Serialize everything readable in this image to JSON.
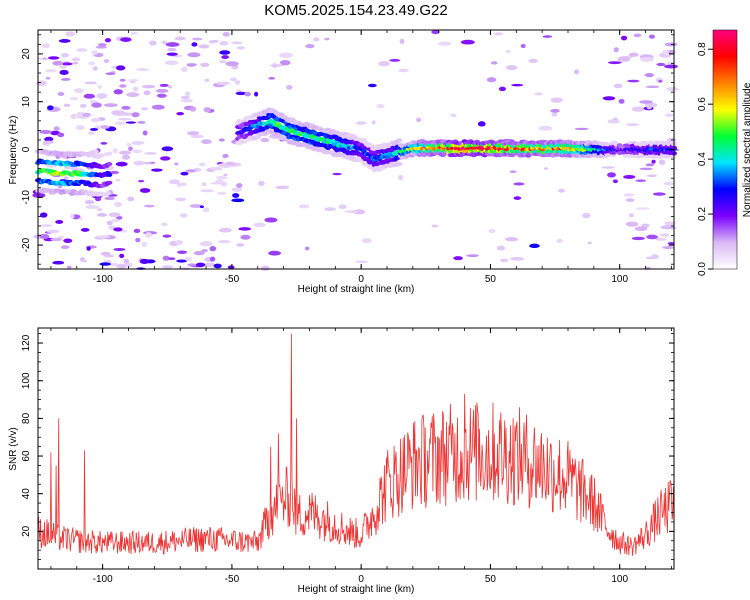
{
  "title": "KOM5.2025.154.23.49.G22",
  "chart_data": [
    {
      "type": "heatmap",
      "xlabel": "Height of straight line (km)",
      "ylabel": "Frequency (Hz)",
      "xlim": [
        -125,
        121
      ],
      "ylim": [
        -25,
        25
      ],
      "xticks": [
        -100,
        -50,
        0,
        50,
        100
      ],
      "yticks": [
        -20,
        -10,
        0,
        10,
        20
      ],
      "grid": false,
      "colorbar": {
        "label": "Normalized spectral amplitude",
        "range": [
          0,
          0.87
        ],
        "ticks": [
          0.0,
          0.2,
          0.4,
          0.6,
          0.8
        ],
        "colors": [
          "#ffffff",
          "#d9b8f5",
          "#7a00ff",
          "#0000ff",
          "#00e5ff",
          "#00ff33",
          "#ffff00",
          "#ff8000",
          "#ff0000",
          "#ff0080"
        ]
      },
      "ridge": [
        {
          "x": -125,
          "y": -4.5,
          "a": 0.45
        },
        {
          "x": -115,
          "y": -5.0,
          "a": 0.55
        },
        {
          "x": -108,
          "y": -5.0,
          "a": 0.45
        },
        {
          "x": -100,
          "y": -5.5,
          "a": 0.25
        },
        {
          "x": -45,
          "y": 4.0,
          "a": 0.25
        },
        {
          "x": -35,
          "y": 6.0,
          "a": 0.45
        },
        {
          "x": -28,
          "y": 4.0,
          "a": 0.45
        },
        {
          "x": -18,
          "y": 2.5,
          "a": 0.45
        },
        {
          "x": -8,
          "y": 1.0,
          "a": 0.4
        },
        {
          "x": 0,
          "y": 0.0,
          "a": 0.3
        },
        {
          "x": 5,
          "y": -2.0,
          "a": 0.3
        },
        {
          "x": 12,
          "y": -1.0,
          "a": 0.35
        },
        {
          "x": 20,
          "y": 0.3,
          "a": 0.55
        },
        {
          "x": 40,
          "y": 0.3,
          "a": 0.85
        },
        {
          "x": 60,
          "y": 0.2,
          "a": 0.7
        },
        {
          "x": 80,
          "y": 0.2,
          "a": 0.65
        },
        {
          "x": 95,
          "y": 0.0,
          "a": 0.35
        },
        {
          "x": 100,
          "y": 0.0,
          "a": 0.2
        },
        {
          "x": 110,
          "y": 0.0,
          "a": 0.3
        },
        {
          "x": 121,
          "y": 0.0,
          "a": 0.3
        }
      ]
    },
    {
      "type": "line",
      "xlabel": "Height of straight line (km)",
      "ylabel": "SNR (v/v)",
      "xlim": [
        -125,
        121
      ],
      "ylim": [
        0,
        128
      ],
      "xticks": [
        -100,
        -50,
        0,
        50,
        100
      ],
      "yticks": [
        20,
        40,
        60,
        80,
        100,
        120
      ],
      "grid": false,
      "color": "#ee3333",
      "envelope": {
        "x": [
          -125,
          -120,
          -115,
          -110,
          -100,
          -90,
          -80,
          -70,
          -60,
          -50,
          -40,
          -35,
          -30,
          -27,
          -25,
          -20,
          -10,
          -5,
          0,
          5,
          10,
          20,
          30,
          40,
          50,
          60,
          70,
          80,
          90,
          95,
          100,
          105,
          110,
          115,
          121
        ],
        "y": [
          20,
          18,
          16,
          15,
          14,
          14,
          14,
          15,
          16,
          15,
          14,
          30,
          36,
          40,
          28,
          30,
          24,
          20,
          18,
          30,
          45,
          56,
          60,
          62,
          62,
          60,
          55,
          48,
          35,
          22,
          14,
          12,
          18,
          28,
          35
        ]
      },
      "spikes": [
        {
          "x": -120,
          "y": 62
        },
        {
          "x": -118,
          "y": 55
        },
        {
          "x": -117,
          "y": 80
        },
        {
          "x": -107,
          "y": 63
        },
        {
          "x": -35,
          "y": 65
        },
        {
          "x": -32,
          "y": 72
        },
        {
          "x": -27,
          "y": 125
        },
        {
          "x": -25,
          "y": 80
        },
        {
          "x": 40,
          "y": 93
        },
        {
          "x": 45,
          "y": 85
        }
      ]
    }
  ]
}
